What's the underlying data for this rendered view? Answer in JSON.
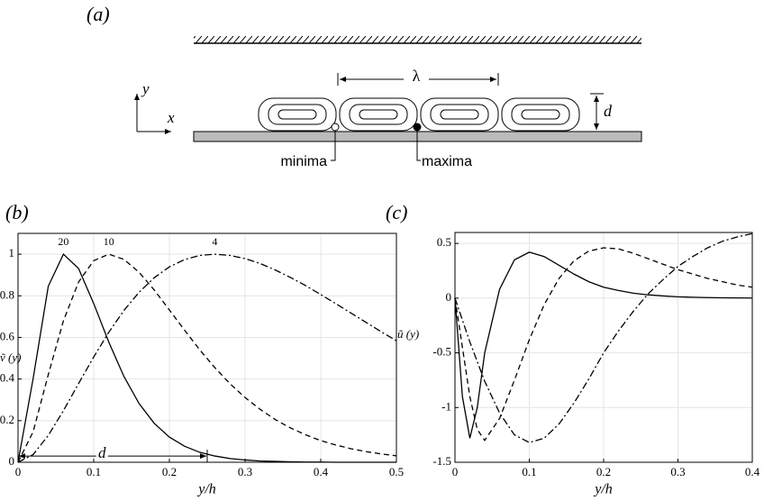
{
  "panel_a": {
    "label": "(a)",
    "wavelength": "λ",
    "height": "d",
    "axis_y": "y",
    "axis_x": "x",
    "minima": "minima",
    "maxima": "maxima"
  },
  "chart_data": [
    {
      "type": "line",
      "panel_label": "(b)",
      "xlabel": "y/h",
      "ylabel": "ṽ (y)",
      "xlim": [
        0,
        0.5
      ],
      "xticks": [
        0,
        0.1,
        0.2,
        0.3,
        0.4,
        0.5
      ],
      "ylim": [
        0,
        1.1
      ],
      "yticks": [
        0,
        0.2,
        0.4,
        0.6,
        0.8,
        1
      ],
      "grid": true,
      "x": [
        0,
        0.02,
        0.04,
        0.06,
        0.08,
        0.1,
        0.12,
        0.14,
        0.16,
        0.18,
        0.2,
        0.22,
        0.24,
        0.26,
        0.28,
        0.3,
        0.32,
        0.34,
        0.36,
        0.38,
        0.4,
        0.42,
        0.44,
        0.46,
        0.48,
        0.5
      ],
      "series": [
        {
          "name": "20",
          "color": "#000000",
          "dash": "solid",
          "values": [
            0,
            0.403,
            0.846,
            1,
            0.931,
            0.763,
            0.577,
            0.412,
            0.282,
            0.187,
            0.121,
            0.077,
            0.048,
            0.03,
            0.018,
            0.011,
            0.006,
            0.004,
            0.002,
            0.001,
            0.001,
            0,
            0,
            0,
            0,
            0
          ]
        },
        {
          "name": "10",
          "color": "#000000",
          "dash": "dashed",
          "values": [
            0,
            0.147,
            0.421,
            0.68,
            0.866,
            0.969,
            1,
            0.975,
            0.913,
            0.828,
            0.732,
            0.635,
            0.541,
            0.455,
            0.378,
            0.311,
            0.254,
            0.205,
            0.165,
            0.132,
            0.104,
            0.083,
            0.065,
            0.051,
            0.04,
            0.031
          ]
        },
        {
          "name": "4",
          "color": "#000000",
          "dash": "dashdot",
          "values": [
            0,
            0.037,
            0.129,
            0.248,
            0.378,
            0.506,
            0.625,
            0.73,
            0.817,
            0.887,
            0.939,
            0.974,
            0.994,
            1,
            0.994,
            0.979,
            0.955,
            0.924,
            0.888,
            0.849,
            0.806,
            0.762,
            0.717,
            0.672,
            0.627,
            0.584
          ]
        }
      ],
      "annotations": [
        {
          "text": "d",
          "x_range": [
            0,
            0.25
          ],
          "y": 0.03
        }
      ]
    },
    {
      "type": "line",
      "panel_label": "(c)",
      "xlabel": "y/h",
      "ylabel": "ũ (y)",
      "xlim": [
        0,
        0.4
      ],
      "xticks": [
        0,
        0.1,
        0.2,
        0.3,
        0.4
      ],
      "ylim": [
        -1.5,
        0.6
      ],
      "yticks": [
        -1.5,
        -1,
        -0.5,
        0,
        0.5
      ],
      "grid": true,
      "x": [
        0,
        0.01,
        0.02,
        0.03,
        0.04,
        0.06,
        0.08,
        0.1,
        0.12,
        0.14,
        0.16,
        0.18,
        0.2,
        0.22,
        0.24,
        0.26,
        0.28,
        0.3,
        0.32,
        0.34,
        0.36,
        0.38,
        0.4
      ],
      "series": [
        {
          "color": "#000000",
          "dash": "solid",
          "values": [
            0,
            -0.9,
            -1.28,
            -1,
            -0.5,
            0.08,
            0.35,
            0.42,
            0.38,
            0.3,
            0.22,
            0.15,
            0.1,
            0.07,
            0.045,
            0.03,
            0.02,
            0.012,
            0.008,
            0.005,
            0.003,
            0.002,
            0.001
          ]
        },
        {
          "color": "#000000",
          "dash": "dashed",
          "values": [
            0,
            -0.45,
            -0.9,
            -1.2,
            -1.3,
            -1.1,
            -0.75,
            -0.38,
            -0.06,
            0.18,
            0.34,
            0.43,
            0.46,
            0.45,
            0.41,
            0.36,
            0.31,
            0.26,
            0.22,
            0.18,
            0.15,
            0.12,
            0.1
          ]
        },
        {
          "color": "#000000",
          "dash": "dashdot",
          "values": [
            0,
            -0.2,
            -0.4,
            -0.58,
            -0.76,
            -1.05,
            -1.25,
            -1.32,
            -1.28,
            -1.15,
            -0.96,
            -0.74,
            -0.5,
            -0.3,
            -0.12,
            0.04,
            0.17,
            0.29,
            0.38,
            0.46,
            0.52,
            0.56,
            0.59
          ]
        }
      ]
    }
  ]
}
